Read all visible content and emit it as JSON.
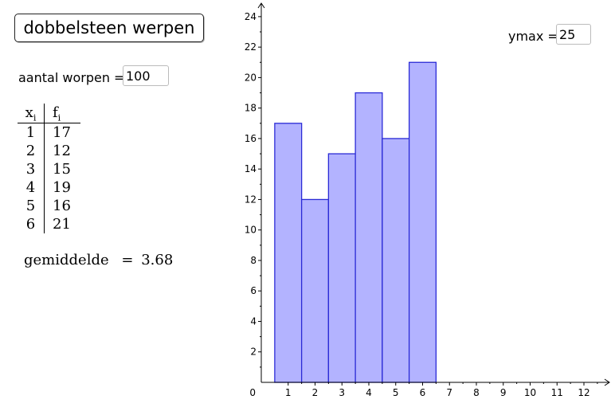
{
  "title_button": "dobbelsteen werpen",
  "throws": {
    "label": "aantal worpen =",
    "value": "100"
  },
  "ymax": {
    "label": "ymax =",
    "value": "25"
  },
  "table": {
    "header_x": "x",
    "header_x_sub": "i",
    "header_f": "f",
    "header_f_sub": "i",
    "rows": [
      {
        "x": "1",
        "f": "17"
      },
      {
        "x": "2",
        "f": "12"
      },
      {
        "x": "3",
        "f": "15"
      },
      {
        "x": "4",
        "f": "19"
      },
      {
        "x": "5",
        "f": "16"
      },
      {
        "x": "6",
        "f": "21"
      }
    ]
  },
  "mean": {
    "label": "gemiddelde",
    "value": "3.68"
  },
  "colors": {
    "bar_fill": "#b3b3ff",
    "bar_stroke": "#2b2bd6",
    "axis": "#000000"
  },
  "chart_data": {
    "type": "bar",
    "categories": [
      1,
      2,
      3,
      4,
      5,
      6
    ],
    "values": [
      17,
      12,
      15,
      19,
      16,
      21
    ],
    "xlim": [
      0,
      12
    ],
    "ylim": [
      0,
      24
    ],
    "x_ticks": [
      1,
      2,
      3,
      4,
      5,
      6,
      7,
      8,
      9,
      10,
      11,
      12
    ],
    "y_ticks": [
      2,
      4,
      6,
      8,
      10,
      12,
      14,
      16,
      18,
      20,
      22,
      24
    ],
    "origin_label": "0",
    "grid": false
  }
}
